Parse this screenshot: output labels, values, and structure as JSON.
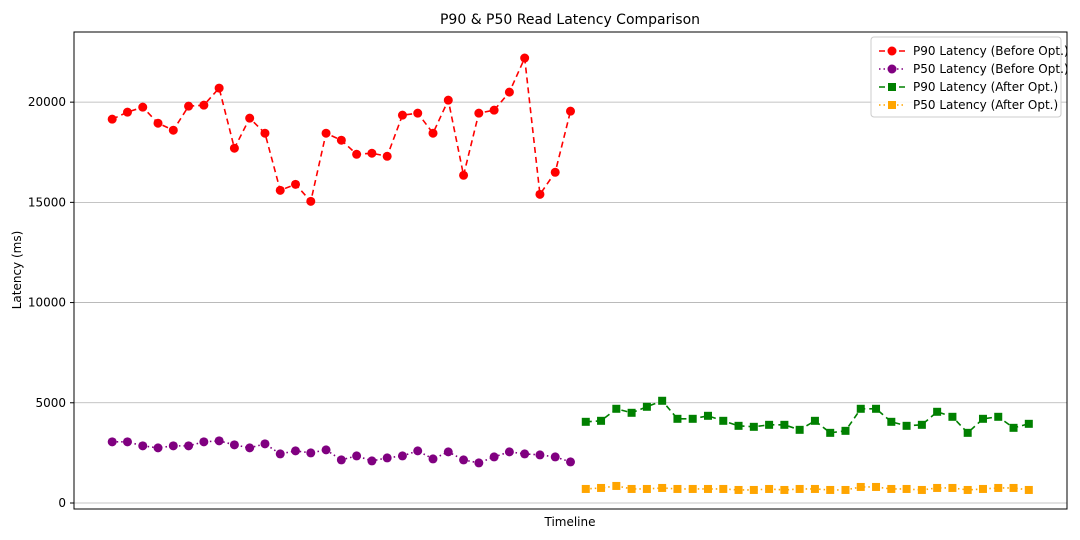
{
  "chart_data": {
    "type": "line",
    "title": "P90 & P50 Read Latency Comparison",
    "xlabel": "Timeline",
    "ylabel": "Latency (ms)",
    "ylim": [
      -300,
      23500
    ],
    "xlim": [
      -2.5,
      62.5
    ],
    "y_ticks": [
      0,
      5000,
      10000,
      15000,
      20000
    ],
    "x_ticks": [],
    "grid": "horizontal",
    "legend_position": "top-right",
    "series": [
      {
        "name": "P90 Latency (Before Opt.)",
        "color": "#ff0000",
        "marker": "circle",
        "linestyle": "dashed",
        "x": [
          0,
          1,
          2,
          3,
          4,
          5,
          6,
          7,
          8,
          9,
          10,
          11,
          12,
          13,
          14,
          15,
          16,
          17,
          18,
          19,
          20,
          21,
          22,
          23,
          24,
          25,
          26,
          27,
          28,
          29,
          30
        ],
        "values": [
          19150,
          19500,
          19750,
          18950,
          18600,
          19800,
          19850,
          20700,
          17700,
          19200,
          18450,
          15600,
          15900,
          15050,
          18450,
          18100,
          17400,
          17450,
          17300,
          19350,
          19450,
          18450,
          20100,
          16350,
          19450,
          19600,
          20500,
          22200,
          15400,
          16500,
          19550
        ]
      },
      {
        "name": "P50 Latency (Before Opt.)",
        "color": "#800080",
        "marker": "circle",
        "linestyle": "dotted",
        "x": [
          0,
          1,
          2,
          3,
          4,
          5,
          6,
          7,
          8,
          9,
          10,
          11,
          12,
          13,
          14,
          15,
          16,
          17,
          18,
          19,
          20,
          21,
          22,
          23,
          24,
          25,
          26,
          27,
          28,
          29,
          30
        ],
        "values": [
          3050,
          3050,
          2850,
          2750,
          2850,
          2850,
          3050,
          3100,
          2900,
          2750,
          2950,
          2450,
          2600,
          2500,
          2650,
          2150,
          2350,
          2100,
          2250,
          2350,
          2600,
          2200,
          2550,
          2150,
          2000,
          2300,
          2550,
          2450,
          2400,
          2300,
          2050
        ]
      },
      {
        "name": "P90 Latency (After Opt.)",
        "color": "#008000",
        "marker": "square",
        "linestyle": "dashed",
        "x": [
          31,
          32,
          33,
          34,
          35,
          36,
          37,
          38,
          39,
          40,
          41,
          42,
          43,
          44,
          45,
          46,
          47,
          48,
          49,
          50,
          51,
          52,
          53,
          54,
          55,
          56,
          57,
          58,
          59,
          60
        ],
        "values": [
          4050,
          4100,
          4700,
          4500,
          4800,
          5100,
          4200,
          4200,
          4350,
          4100,
          3850,
          3800,
          3900,
          3900,
          3650,
          4100,
          3500,
          3600,
          4700,
          4700,
          4050,
          3850,
          3900,
          4550,
          4300,
          3500,
          4200,
          4300,
          3750,
          3950
        ]
      },
      {
        "name": "P50 Latency (After Opt.)",
        "color": "#ffa500",
        "marker": "square",
        "linestyle": "dotted",
        "x": [
          31,
          32,
          33,
          34,
          35,
          36,
          37,
          38,
          39,
          40,
          41,
          42,
          43,
          44,
          45,
          46,
          47,
          48,
          49,
          50,
          51,
          52,
          53,
          54,
          55,
          56,
          57,
          58,
          59,
          60
        ],
        "values": [
          700,
          750,
          850,
          700,
          700,
          750,
          700,
          700,
          700,
          700,
          650,
          650,
          700,
          650,
          700,
          700,
          650,
          650,
          800,
          800,
          700,
          700,
          650,
          750,
          750,
          650,
          700,
          750,
          750,
          650
        ]
      }
    ]
  }
}
